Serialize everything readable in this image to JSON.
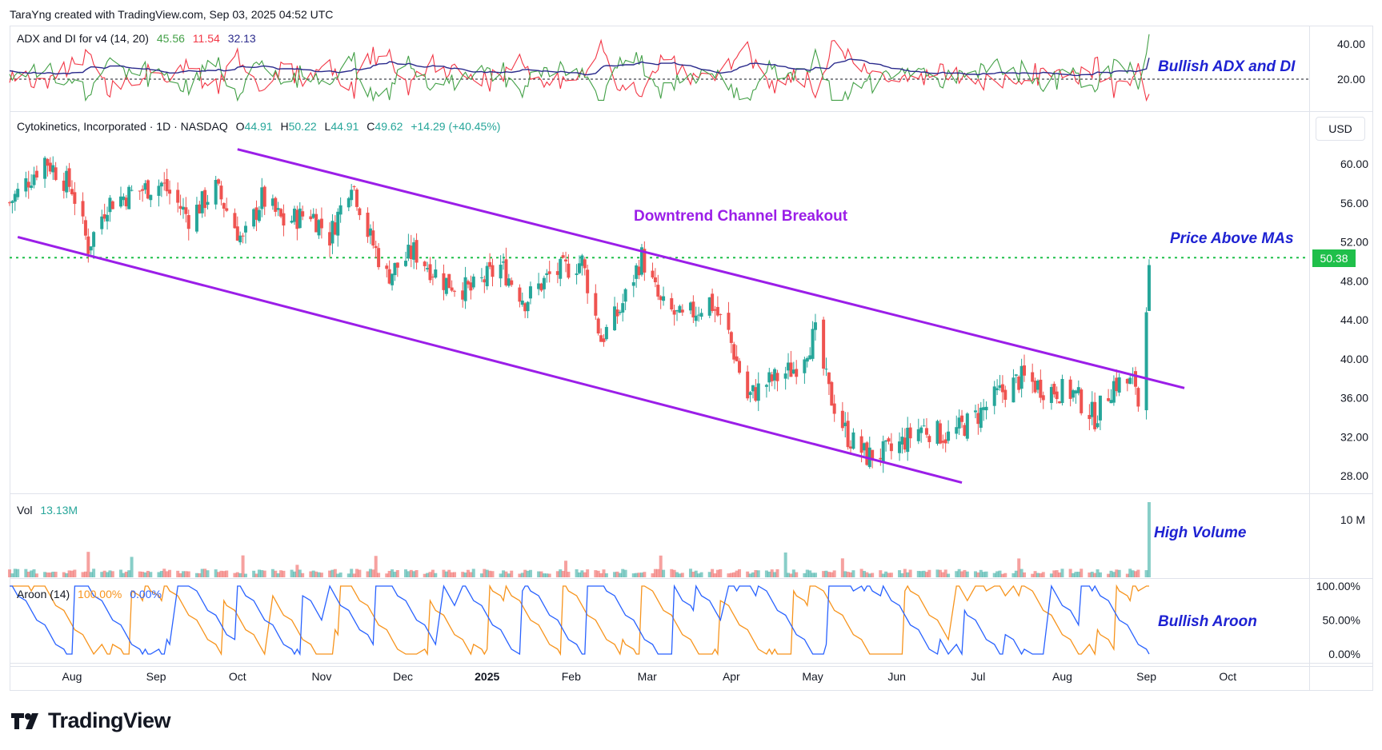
{
  "header": {
    "credit": "TaraYng created with TradingView.com, Sep 03, 2025 04:52 UTC"
  },
  "adx_panel": {
    "title": "ADX and DI for v4 (14, 20)",
    "adx_value": "45.56",
    "di_minus_value": "11.54",
    "di_plus_value": "32.13",
    "ticks": [
      "40.00",
      "20.00"
    ],
    "annotation": "Bullish ADX and DI"
  },
  "price_panel": {
    "symbol": "Cytokinetics, Incorporated · 1D · NASDAQ",
    "o_label": "O",
    "o_value": "44.91",
    "h_label": "H",
    "h_value": "50.22",
    "l_label": "L",
    "l_value": "44.91",
    "c_label": "C",
    "c_value": "49.62",
    "change": "+14.29 (+40.45%)",
    "currency": "USD",
    "last_price": "50.38",
    "ticks": [
      "60.00",
      "56.00",
      "52.00",
      "48.00",
      "44.00",
      "40.00",
      "36.00",
      "32.00",
      "28.00"
    ],
    "channel_label": "Downtrend Channel Breakout",
    "ma_label": "Price Above MAs"
  },
  "volume_panel": {
    "title": "Vol",
    "value": "13.13M",
    "tick": "10 M",
    "annotation": "High Volume"
  },
  "aroon_panel": {
    "title": "Aroon (14)",
    "up_value": "100.00%",
    "down_value": "0.00%",
    "ticks": [
      "100.00%",
      "50.00%",
      "0.00%"
    ],
    "annotation": "Bullish Aroon"
  },
  "time_axis": [
    "Aug",
    "Sep",
    "Oct",
    "Nov",
    "Dec",
    "2025",
    "Feb",
    "Mar",
    "Apr",
    "May",
    "Jun",
    "Jul",
    "Aug",
    "Sep",
    "Oct"
  ],
  "colors": {
    "up": "#26a69a",
    "down": "#ef5350",
    "channel": "#9b1ee8",
    "adx": "#2a2a8c",
    "di_plus": "#43a047",
    "di_minus": "#f23645",
    "aroon_up": "#f7941d",
    "aroon_down": "#2962ff",
    "annotation": "#1e22d2",
    "level_line": "#1fbf4a"
  },
  "chart_data": {
    "type": "candlestick",
    "title": "Cytokinetics, Incorporated · 1D · NASDAQ",
    "ylim": [
      27,
      62
    ],
    "x_range": [
      "2024-07-09",
      "2025-10-31"
    ],
    "closes": [
      {
        "date": "2024-07-09",
        "close": 56.0
      },
      {
        "date": "2024-07-22",
        "close": 60.5
      },
      {
        "date": "2024-08-01",
        "close": 57.5
      },
      {
        "date": "2024-08-07",
        "close": 51.5
      },
      {
        "date": "2024-08-14",
        "close": 56.0
      },
      {
        "date": "2024-08-23",
        "close": 57.0
      },
      {
        "date": "2024-09-03",
        "close": 58.0
      },
      {
        "date": "2024-09-13",
        "close": 54.5
      },
      {
        "date": "2024-09-23",
        "close": 57.5
      },
      {
        "date": "2024-10-03",
        "close": 52.0
      },
      {
        "date": "2024-10-10",
        "close": 56.5
      },
      {
        "date": "2024-10-18",
        "close": 54.0
      },
      {
        "date": "2024-10-28",
        "close": 55.0
      },
      {
        "date": "2024-11-04",
        "close": 52.5
      },
      {
        "date": "2024-11-12",
        "close": 58.5
      },
      {
        "date": "2024-11-18",
        "close": 53.0
      },
      {
        "date": "2024-11-25",
        "close": 48.5
      },
      {
        "date": "2024-12-05",
        "close": 51.0
      },
      {
        "date": "2024-12-16",
        "close": 48.0
      },
      {
        "date": "2024-12-26",
        "close": 47.0
      },
      {
        "date": "2025-01-06",
        "close": 49.5
      },
      {
        "date": "2025-01-15",
        "close": 46.0
      },
      {
        "date": "2025-01-24",
        "close": 48.5
      },
      {
        "date": "2025-02-05",
        "close": 50.0
      },
      {
        "date": "2025-02-12",
        "close": 42.0
      },
      {
        "date": "2025-02-19",
        "close": 45.0
      },
      {
        "date": "2025-02-27",
        "close": 50.5
      },
      {
        "date": "2025-03-06",
        "close": 45.5
      },
      {
        "date": "2025-03-14",
        "close": 44.0
      },
      {
        "date": "2025-03-24",
        "close": 46.0
      },
      {
        "date": "2025-03-31",
        "close": 42.5
      },
      {
        "date": "2025-04-07",
        "close": 36.0
      },
      {
        "date": "2025-04-14",
        "close": 37.5
      },
      {
        "date": "2025-04-24",
        "close": 39.0
      },
      {
        "date": "2025-05-02",
        "close": 42.5
      },
      {
        "date": "2025-05-07",
        "close": 36.5
      },
      {
        "date": "2025-05-14",
        "close": 32.0
      },
      {
        "date": "2025-05-21",
        "close": 30.0
      },
      {
        "date": "2025-05-30",
        "close": 30.5
      },
      {
        "date": "2025-06-10",
        "close": 33.0
      },
      {
        "date": "2025-06-20",
        "close": 32.0
      },
      {
        "date": "2025-06-30",
        "close": 34.0
      },
      {
        "date": "2025-07-09",
        "close": 36.5
      },
      {
        "date": "2025-07-17",
        "close": 38.0
      },
      {
        "date": "2025-07-25",
        "close": 37.0
      },
      {
        "date": "2025-08-05",
        "close": 36.5
      },
      {
        "date": "2025-08-13",
        "close": 34.0
      },
      {
        "date": "2025-08-20",
        "close": 37.5
      },
      {
        "date": "2025-08-28",
        "close": 37.5
      },
      {
        "date": "2025-08-29",
        "close": 35.3
      },
      {
        "date": "2025-09-02",
        "close": 49.62
      }
    ],
    "last_candle": {
      "date": "2025-09-02",
      "open": 44.91,
      "high": 50.22,
      "low": 44.91,
      "close": 49.62
    },
    "horizontal_line": 50.38,
    "channel": {
      "upper": [
        {
          "date": "2024-10-01",
          "value": 61.5
        },
        {
          "date": "2025-09-15",
          "value": 37.0
        }
      ],
      "lower": [
        {
          "date": "2024-07-12",
          "value": 52.5
        },
        {
          "date": "2025-06-25",
          "value": 27.3
        }
      ]
    },
    "volume_last": "13.13M",
    "aroon_last": {
      "up": 100.0,
      "down": 0.0
    },
    "adx_last": {
      "adx": 45.56,
      "di_minus": 11.54,
      "di_plus": 32.13
    }
  }
}
